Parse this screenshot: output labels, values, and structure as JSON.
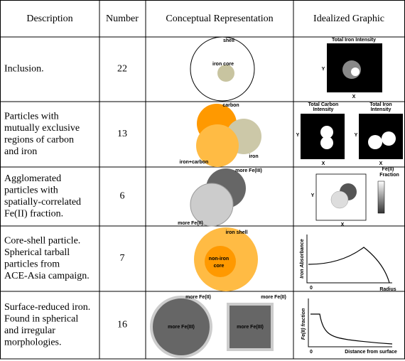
{
  "table": {
    "header": [
      "Description",
      "Number",
      "Conceptual Representation",
      "Idealized Graphic"
    ],
    "rows": [
      {
        "description": [
          "Inclusion."
        ],
        "number": 22,
        "concept": [
          "shell",
          "iron core"
        ],
        "graphic": [
          "Total Iron Intensity",
          "Y",
          "X"
        ]
      },
      {
        "description": [
          "Particles with",
          "mutually exclusive",
          "regions of carbon",
          "and iron"
        ],
        "number": 13,
        "concept": [
          "carbon",
          "iron",
          "iron+carbon"
        ],
        "graphic": [
          "Total Carbon",
          "Intensity",
          "Total Iron",
          "Intensity",
          "Y",
          "X",
          "Y",
          "X"
        ]
      },
      {
        "description": [
          "Agglomerated",
          "particles with",
          "spatially-correlated",
          "Fe(II) fraction."
        ],
        "number": 6,
        "concept": [
          "more Fe(III)",
          "more Fe(II)"
        ],
        "graphic": [
          "Fe(II)",
          "Fraction",
          "Y",
          "X"
        ]
      },
      {
        "description": [
          "Core-shell particle.",
          "Spherical tarball",
          "particles from",
          "ACE-Asia campaign."
        ],
        "number": 7,
        "concept": [
          "iron shell",
          "non-iron",
          "core"
        ],
        "graphic": [
          "Iron Absorbance",
          "0",
          "Radius"
        ]
      },
      {
        "description": [
          "Surface-reduced iron.",
          "Found in spherical",
          "and irregular",
          "morphologies."
        ],
        "number": 16,
        "concept": [
          "more Fe(II)",
          "more Fe(II)",
          "more Fe(III)",
          "more Fe(III)"
        ],
        "graphic": [
          "Fe(II) fraction",
          "0",
          "Distance from surface"
        ]
      }
    ]
  }
}
